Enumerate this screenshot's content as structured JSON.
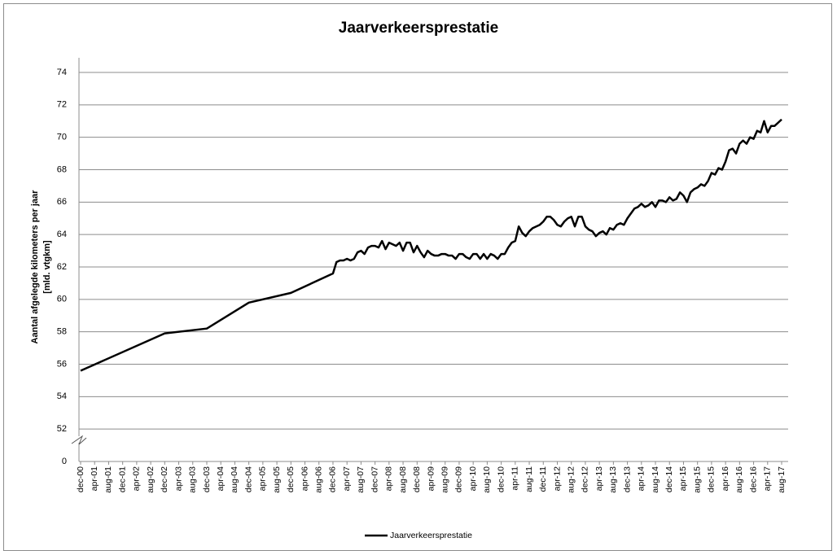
{
  "chart_data": {
    "type": "line",
    "title": "Jaarverkeersprestatie",
    "ylabel": [
      "Aantal afgelegde kilometers per jaar",
      "[mld. vtgkm]"
    ],
    "categories": [
      "dec-00",
      null,
      null,
      null,
      "apr-01",
      null,
      null,
      null,
      "aug-01",
      null,
      null,
      null,
      "dec-01",
      null,
      null,
      null,
      "apr-02",
      null,
      null,
      null,
      "aug-02",
      null,
      null,
      null,
      "dec-02",
      null,
      null,
      null,
      "apr-03",
      null,
      null,
      null,
      "aug-03",
      null,
      null,
      null,
      "dec-03",
      null,
      null,
      null,
      "apr-04",
      null,
      null,
      null,
      "aug-04",
      null,
      null,
      null,
      "dec-04",
      null,
      null,
      null,
      "apr-05",
      null,
      null,
      null,
      "aug-05",
      null,
      null,
      null,
      "dec-05",
      null,
      null,
      null,
      "apr-06",
      null,
      null,
      null,
      "aug-06",
      null,
      null,
      null,
      "dec-06",
      null,
      null,
      null,
      "apr-07",
      null,
      null,
      null,
      "aug-07",
      null,
      null,
      null,
      "dec-07",
      null,
      null,
      null,
      "apr-08",
      null,
      null,
      null,
      "aug-08",
      null,
      null,
      null,
      "dec-08",
      null,
      null,
      null,
      "apr-09",
      null,
      null,
      null,
      "aug-09",
      null,
      null,
      null,
      "dec-09",
      null,
      null,
      null,
      "apr-10",
      null,
      null,
      null,
      "aug-10",
      null,
      null,
      null,
      "dec-10",
      null,
      null,
      null,
      "apr-11",
      null,
      null,
      null,
      "aug-11",
      null,
      null,
      null,
      "dec-11",
      null,
      null,
      null,
      "apr-12",
      null,
      null,
      null,
      "aug-12",
      null,
      null,
      null,
      "dec-12",
      null,
      null,
      null,
      "apr-13",
      null,
      null,
      null,
      "aug-13",
      null,
      null,
      null,
      "dec-13",
      null,
      null,
      null,
      "apr-14",
      null,
      null,
      null,
      "aug-14",
      null,
      null,
      null,
      "dec-14",
      null,
      null,
      null,
      "apr-15",
      null,
      null,
      null,
      "aug-15",
      null,
      null,
      null,
      "dec-15",
      null,
      null,
      null,
      "apr-16",
      null,
      null,
      null,
      "aug-16",
      null,
      null,
      null,
      "dec-16",
      null,
      null,
      null,
      "apr-17",
      null,
      null,
      null,
      "aug-17"
    ],
    "series": [
      {
        "name": "Jaarverkeersprestatie",
        "color": "#000000",
        "values": [
          55.6,
          null,
          null,
          null,
          null,
          null,
          null,
          null,
          null,
          null,
          null,
          null,
          null,
          null,
          null,
          null,
          null,
          null,
          null,
          null,
          null,
          null,
          null,
          null,
          57.9,
          null,
          null,
          null,
          null,
          null,
          null,
          null,
          null,
          null,
          null,
          null,
          58.2,
          null,
          null,
          null,
          null,
          null,
          null,
          null,
          null,
          null,
          null,
          null,
          59.8,
          null,
          null,
          null,
          null,
          null,
          null,
          null,
          null,
          null,
          null,
          null,
          60.4,
          null,
          null,
          null,
          null,
          null,
          null,
          null,
          null,
          null,
          null,
          null,
          61.6,
          62.3,
          62.4,
          62.4,
          62.5,
          62.4,
          62.5,
          62.9,
          63.0,
          62.8,
          63.2,
          63.3,
          63.3,
          63.2,
          63.6,
          63.1,
          63.5,
          63.4,
          63.3,
          63.5,
          63.0,
          63.5,
          63.5,
          62.9,
          63.3,
          62.9,
          62.6,
          63.0,
          62.8,
          62.7,
          62.7,
          62.8,
          62.8,
          62.7,
          62.7,
          62.5,
          62.8,
          62.8,
          62.6,
          62.5,
          62.8,
          62.8,
          62.5,
          62.8,
          62.5,
          62.8,
          62.7,
          62.5,
          62.8,
          62.8,
          63.2,
          63.5,
          63.6,
          64.5,
          64.1,
          63.9,
          64.2,
          64.4,
          64.5,
          64.6,
          64.8,
          65.1,
          65.1,
          64.9,
          64.6,
          64.5,
          64.8,
          65.0,
          65.1,
          64.5,
          65.1,
          65.1,
          64.5,
          64.3,
          64.2,
          63.9,
          64.1,
          64.2,
          64.0,
          64.4,
          64.3,
          64.6,
          64.7,
          64.6,
          65.0,
          65.3,
          65.6,
          65.7,
          65.9,
          65.7,
          65.8,
          66.0,
          65.7,
          66.1,
          66.1,
          66.0,
          66.3,
          66.1,
          66.2,
          66.6,
          66.4,
          66.0,
          66.6,
          66.8,
          66.9,
          67.1,
          67.0,
          67.3,
          67.8,
          67.7,
          68.1,
          68.0,
          68.5,
          69.2,
          69.3,
          69.0,
          69.6,
          69.8,
          69.6,
          70.0,
          69.9,
          70.4,
          70.3,
          71.0,
          70.3,
          70.7,
          70.7,
          70.9,
          71.1
        ]
      }
    ],
    "ylim": [
      0,
      74
    ],
    "yticks": [
      0,
      52,
      54,
      56,
      58,
      60,
      62,
      64,
      66,
      68,
      70,
      72,
      74
    ],
    "axis_break": [
      0,
      50
    ],
    "span_gaps": true,
    "grid": true,
    "legend": "bottom"
  }
}
